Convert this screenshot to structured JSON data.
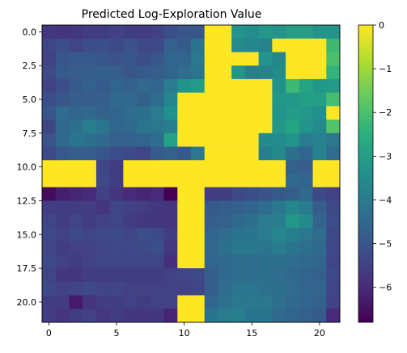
{
  "chart_data": {
    "type": "heatmap",
    "title": "Predicted Log-Exploration Value",
    "xlabel": "",
    "ylabel": "",
    "x_ticks": [
      "0",
      "5",
      "10",
      "15",
      "20"
    ],
    "y_ticks": [
      "0.0",
      "2.5",
      "5.0",
      "7.5",
      "10.0",
      "12.5",
      "15.0",
      "17.5",
      "20.0"
    ],
    "colorbar_ticks": [
      "0",
      "−1",
      "−2",
      "−3",
      "−4",
      "−5",
      "−6"
    ],
    "colorbar_range": [
      -6.8,
      0
    ],
    "colormap": "viridis",
    "grid": false,
    "rows": 22,
    "cols": 22,
    "values": [
      [
        -5.7,
        -5.8,
        -5.7,
        -5.6,
        -5.6,
        -5.5,
        -5.6,
        -5.6,
        -5.5,
        -5.2,
        -5.0,
        -5.0,
        0,
        0,
        -3.3,
        -3.5,
        -3.2,
        -3.3,
        -3.0,
        -3.0,
        -3.3,
        -3.3
      ],
      [
        -5.4,
        -5.2,
        -5.4,
        -5.2,
        -5.2,
        -5.3,
        -5.1,
        -5.3,
        -5.3,
        -4.7,
        -4.9,
        -4.2,
        0,
        0,
        -3.6,
        -3.7,
        -3.8,
        0,
        0,
        0,
        0,
        -2.2
      ],
      [
        -5.5,
        -5.0,
        -4.9,
        -4.9,
        -5.0,
        -5.1,
        -5.0,
        -5.2,
        -5.0,
        -4.6,
        -4.6,
        -4.1,
        0,
        0,
        0,
        0,
        -3.3,
        -3.7,
        0,
        0,
        0,
        -2.0
      ],
      [
        -5.3,
        -4.9,
        -4.8,
        -4.8,
        -4.7,
        -4.8,
        -5.0,
        -4.9,
        -4.8,
        -4.6,
        -4.4,
        -4.2,
        0,
        0,
        -3.3,
        -3.9,
        -3.8,
        -3.5,
        0,
        0,
        0,
        -2.4
      ],
      [
        -5.5,
        -5.2,
        -4.9,
        -4.7,
        -4.9,
        -4.6,
        -4.7,
        -4.5,
        -4.6,
        -4.0,
        -3.3,
        -3.1,
        0,
        0,
        0,
        0,
        0,
        -3.4,
        -2.2,
        -2.8,
        -3.2,
        -3.1
      ],
      [
        -5.2,
        -5.0,
        -4.8,
        -4.8,
        -4.8,
        -4.5,
        -4.5,
        -4.7,
        -4.4,
        -3.7,
        0,
        0,
        0,
        0,
        0,
        0,
        0,
        -3.2,
        -3.2,
        -3.0,
        -3.0,
        -2.1
      ],
      [
        -5.0,
        -4.4,
        -4.6,
        -4.5,
        -4.7,
        -4.6,
        -4.4,
        -4.3,
        -4.0,
        -3.4,
        0,
        0,
        0,
        0,
        0,
        0,
        0,
        -3.3,
        -3.1,
        -3.2,
        -3.4,
        0
      ],
      [
        -5.4,
        -4.5,
        -4.3,
        -3.9,
        -4.2,
        -4.6,
        -4.5,
        -4.2,
        -4.1,
        -3.9,
        0,
        0,
        0,
        0,
        0,
        0,
        0,
        -3.2,
        -2.8,
        -3.3,
        -3.6,
        -1.9
      ],
      [
        -5.1,
        -4.5,
        -4.2,
        -4.3,
        -4.5,
        -4.7,
        -4.7,
        -4.6,
        -4.4,
        -2.9,
        0,
        0,
        0,
        0,
        0,
        0,
        -3.6,
        -3.5,
        -3.3,
        -4.0,
        -3.8,
        -4.1
      ],
      [
        -5.3,
        -4.9,
        -4.8,
        -4.8,
        -5.0,
        -5.2,
        -5.3,
        -5.4,
        -4.9,
        -4.7,
        -4.9,
        -4.1,
        0,
        0,
        0,
        0,
        -3.9,
        -3.6,
        -4.3,
        -4.6,
        -3.8,
        -4.4
      ],
      [
        0,
        0,
        0,
        0,
        -5.4,
        -5.6,
        0,
        0,
        0,
        0,
        0,
        0,
        0,
        0,
        0,
        0,
        0,
        0,
        -4.7,
        -4.8,
        0,
        0
      ],
      [
        0,
        0,
        0,
        0,
        -5.3,
        -5.6,
        0,
        0,
        0,
        0,
        0,
        0,
        0,
        0,
        0,
        0,
        0,
        0,
        -4.5,
        -4.6,
        0,
        0
      ],
      [
        -6.6,
        -6.2,
        -6.1,
        -6.0,
        -5.5,
        -5.8,
        -6.0,
        -6.1,
        -6.0,
        -6.8,
        0,
        0,
        -5.6,
        -5.6,
        -5.3,
        -5.2,
        -5.1,
        -4.9,
        -4.8,
        -4.5,
        -5.3,
        -5.5
      ],
      [
        -5.6,
        -5.6,
        -5.6,
        -5.6,
        -5.8,
        -5.4,
        -5.5,
        -5.6,
        -5.7,
        -5.8,
        0,
        0,
        -4.9,
        -4.8,
        -4.7,
        -4.6,
        -4.4,
        -4.1,
        -3.7,
        -4.0,
        -4.8,
        -5.3
      ],
      [
        -5.4,
        -5.6,
        -5.4,
        -5.6,
        -5.5,
        -5.4,
        -5.6,
        -5.7,
        -5.7,
        -5.8,
        0,
        0,
        -4.8,
        -4.7,
        -4.5,
        -4.3,
        -4.0,
        -3.9,
        -3.2,
        -3.6,
        -4.6,
        -5.2
      ],
      [
        -5.3,
        -5.5,
        -5.3,
        -5.4,
        -5.3,
        -5.3,
        -5.4,
        -5.2,
        -5.3,
        -5.6,
        0,
        0,
        -4.6,
        -4.4,
        -4.2,
        -4.2,
        -4.0,
        -3.7,
        -3.9,
        -4.1,
        -4.4,
        -5.3
      ],
      [
        -5.4,
        -5.6,
        -5.5,
        -5.5,
        -5.4,
        -5.3,
        -5.3,
        -5.3,
        -5.2,
        -5.7,
        0,
        0,
        -4.5,
        -4.3,
        -4.1,
        -4.1,
        -4.2,
        -4.0,
        -4.2,
        -4.3,
        -4.5,
        -5.3
      ],
      [
        -5.3,
        -5.5,
        -5.6,
        -5.5,
        -5.4,
        -5.4,
        -5.4,
        -5.4,
        -5.4,
        -5.9,
        0,
        0,
        -4.6,
        -4.5,
        -4.4,
        -4.4,
        -4.3,
        -4.3,
        -4.4,
        -4.5,
        -4.6,
        -5.4
      ],
      [
        -5.4,
        -5.7,
        -5.7,
        -5.6,
        -5.6,
        -5.6,
        -5.6,
        -5.6,
        -5.6,
        -5.5,
        -5.4,
        -5.3,
        -4.8,
        -4.5,
        -4.4,
        -4.4,
        -4.3,
        -4.4,
        -4.5,
        -4.6,
        -4.7,
        -5.3
      ],
      [
        -5.3,
        -5.5,
        -5.4,
        -5.3,
        -5.4,
        -5.4,
        -5.5,
        -5.5,
        -5.5,
        -5.5,
        -5.5,
        -5.4,
        -4.8,
        -4.4,
        -4.2,
        -4.2,
        -4.3,
        -4.3,
        -4.4,
        -4.6,
        -4.6,
        -5.4
      ],
      [
        -5.6,
        -5.6,
        -6.3,
        -5.8,
        -5.6,
        -5.6,
        -5.5,
        -5.6,
        -5.5,
        -5.5,
        0,
        0,
        -4.6,
        -4.3,
        -4.1,
        -4.1,
        -4.1,
        -4.3,
        -4.5,
        -4.6,
        -4.7,
        -5.5
      ],
      [
        -5.6,
        -5.8,
        -5.6,
        -5.5,
        -5.7,
        -5.6,
        -5.7,
        -5.7,
        -5.7,
        -6.1,
        0,
        0,
        -4.2,
        -4.0,
        -3.9,
        -4.2,
        -4.2,
        -4.5,
        -4.6,
        -4.7,
        -4.9,
        -6.0
      ]
    ]
  }
}
